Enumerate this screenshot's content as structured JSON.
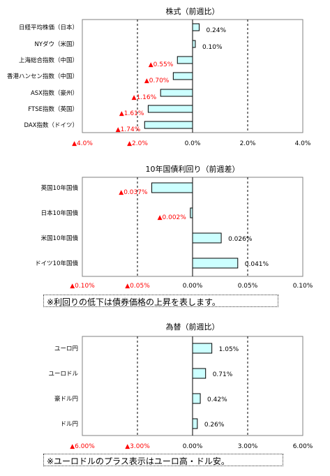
{
  "chart_data": [
    {
      "type": "bar",
      "orientation": "horizontal",
      "title": "株式（前週比）",
      "categories": [
        "日経平均株価（日本）",
        "NYダウ（米国）",
        "上海総合指数（中国）",
        "香港ハンセン指数（中国）",
        "ASX指数（豪州）",
        "FTSE指数（英国）",
        "DAX指数（ドイツ）"
      ],
      "values": [
        0.24,
        0.1,
        -0.55,
        -0.7,
        -1.16,
        -1.61,
        -1.74
      ],
      "value_labels": [
        "0.24%",
        "0.10%",
        "▲0.55%",
        "▲0.70%",
        "▲1.16%",
        "▲1.61%",
        "▲1.74%"
      ],
      "xlim": [
        -4.0,
        4.0
      ],
      "ticks": [
        -4.0,
        -2.0,
        0.0,
        2.0,
        4.0
      ],
      "tick_labels": [
        "▲4.0%",
        "▲2.0%",
        "0.0%",
        "2.0%",
        "4.0%"
      ],
      "grid": "vertical dashed"
    },
    {
      "type": "bar",
      "orientation": "horizontal",
      "title": "10年国債利回り（前週差）",
      "categories": [
        "英国10年国債",
        "日本10年国債",
        "米国10年国債",
        "ドイツ10年国債"
      ],
      "values": [
        -0.037,
        -0.002,
        0.026,
        0.041
      ],
      "value_labels": [
        "▲0.037%",
        "▲0.002%",
        "0.026%",
        "0.041%"
      ],
      "xlim": [
        -0.1,
        0.1
      ],
      "ticks": [
        -0.1,
        -0.05,
        0.0,
        0.05,
        0.1
      ],
      "tick_labels": [
        "▲0.10%",
        "▲0.05%",
        "0.00%",
        "0.05%",
        "0.10%"
      ],
      "grid": "vertical dashed",
      "note": "※利回りの低下は債券価格の上昇を表します。"
    },
    {
      "type": "bar",
      "orientation": "horizontal",
      "title": "為替（前週比）",
      "categories": [
        "ユーロ円",
        "ユーロドル",
        "豪ドル円",
        "ドル円"
      ],
      "values": [
        1.05,
        0.71,
        0.42,
        0.26
      ],
      "value_labels": [
        "1.05%",
        "0.71%",
        "0.42%",
        "0.26%"
      ],
      "xlim": [
        -6.0,
        6.0
      ],
      "ticks": [
        -6.0,
        -3.0,
        0.0,
        3.0,
        6.0
      ],
      "tick_labels": [
        "▲6.00%",
        "▲3.00%",
        "0.00%",
        "3.00%",
        "6.00%"
      ],
      "grid": "vertical dashed",
      "note": "※ユーロドルのプラス表示はユーロ高・ドル安。"
    }
  ],
  "colors": {
    "bar_fill": "#ccffff",
    "bar_stroke": "#000000",
    "negative_label": "#ff0000",
    "positive_label": "#000000",
    "frame": "#808080"
  }
}
